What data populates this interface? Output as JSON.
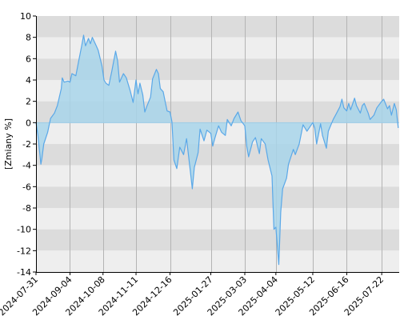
{
  "chart_data": {
    "type": "area",
    "title": "",
    "xlabel": "",
    "ylabel": "[Zmiany %]",
    "ylim": [
      -14,
      10
    ],
    "yticks": [
      10,
      8,
      6,
      4,
      2,
      0,
      -2,
      -4,
      -6,
      -8,
      -10,
      -12,
      -14
    ],
    "xlim": [
      "2024-07-31",
      "2024-08-09"
    ],
    "xticks": [
      "2024-07-31",
      "2024-09-04",
      "2024-10-08",
      "2024-11-11",
      "2024-12-16",
      "2025-01-27",
      "2025-03-03",
      "2025-04-04",
      "2025-05-12",
      "2025-06-16",
      "2025-07-22"
    ],
    "grid": "horizontal bands and vertical lines",
    "legend": "none",
    "colors": {
      "line": "#5aa8e8",
      "fill": "#a8d5ea",
      "band_dark": "#dcdcdc",
      "band_light": "#eeeeee",
      "grid_line": "#b4b4b4",
      "zero_line": "#9ccbe6"
    },
    "series": [
      {
        "points": [
          [
            "2024-07-31",
            0.0
          ],
          [
            "2024-08-02",
            -1.2
          ],
          [
            "2024-08-05",
            -3.9
          ],
          [
            "2024-08-06",
            -3.4
          ],
          [
            "2024-08-08",
            -2.0
          ],
          [
            "2024-08-12",
            -0.9
          ],
          [
            "2024-08-15",
            0.4
          ],
          [
            "2024-08-19",
            0.9
          ],
          [
            "2024-08-22",
            1.6
          ],
          [
            "2024-08-26",
            3.2
          ],
          [
            "2024-08-27",
            4.2
          ],
          [
            "2024-08-29",
            3.8
          ],
          [
            "2024-09-02",
            3.9
          ],
          [
            "2024-09-04",
            3.8
          ],
          [
            "2024-09-06",
            4.6
          ],
          [
            "2024-09-10",
            4.4
          ],
          [
            "2024-09-13",
            5.8
          ],
          [
            "2024-09-16",
            7.2
          ],
          [
            "2024-09-18",
            8.2
          ],
          [
            "2024-09-20",
            7.2
          ],
          [
            "2024-09-23",
            7.9
          ],
          [
            "2024-09-25",
            7.4
          ],
          [
            "2024-09-27",
            8.0
          ],
          [
            "2024-10-01",
            7.2
          ],
          [
            "2024-10-03",
            6.8
          ],
          [
            "2024-10-07",
            5.3
          ],
          [
            "2024-10-09",
            4.0
          ],
          [
            "2024-10-11",
            3.7
          ],
          [
            "2024-10-14",
            3.5
          ],
          [
            "2024-10-17",
            4.8
          ],
          [
            "2024-10-21",
            6.7
          ],
          [
            "2024-10-23",
            5.8
          ],
          [
            "2024-10-25",
            3.8
          ],
          [
            "2024-10-29",
            4.6
          ],
          [
            "2024-11-01",
            4.2
          ],
          [
            "2024-11-05",
            3.0
          ],
          [
            "2024-11-08",
            1.9
          ],
          [
            "2024-11-11",
            4.0
          ],
          [
            "2024-11-13",
            2.7
          ],
          [
            "2024-11-15",
            3.7
          ],
          [
            "2024-11-18",
            2.6
          ],
          [
            "2024-11-20",
            1.0
          ],
          [
            "2024-11-22",
            1.5
          ],
          [
            "2024-11-26",
            2.4
          ],
          [
            "2024-11-28",
            4.1
          ],
          [
            "2024-12-02",
            5.0
          ],
          [
            "2024-12-04",
            4.6
          ],
          [
            "2024-12-06",
            3.2
          ],
          [
            "2024-12-09",
            2.9
          ],
          [
            "2024-12-11",
            2.0
          ],
          [
            "2024-12-13",
            1.1
          ],
          [
            "2024-12-16",
            1.0
          ],
          [
            "2024-12-18",
            0.1
          ],
          [
            "2024-12-20",
            -3.5
          ],
          [
            "2024-12-23",
            -4.3
          ],
          [
            "2024-12-26",
            -2.3
          ],
          [
            "2024-12-30",
            -3.0
          ],
          [
            "2025-01-02",
            -1.5
          ],
          [
            "2025-01-06",
            -4.6
          ],
          [
            "2025-01-08",
            -6.2
          ],
          [
            "2025-01-10",
            -4.2
          ],
          [
            "2025-01-14",
            -2.8
          ],
          [
            "2025-01-16",
            -0.6
          ],
          [
            "2025-01-20",
            -1.7
          ],
          [
            "2025-01-23",
            -0.7
          ],
          [
            "2025-01-27",
            -1.0
          ],
          [
            "2025-01-29",
            -2.2
          ],
          [
            "2025-01-31",
            -1.5
          ],
          [
            "2025-02-04",
            -0.3
          ],
          [
            "2025-02-07",
            -0.9
          ],
          [
            "2025-02-11",
            -1.2
          ],
          [
            "2025-02-13",
            0.3
          ],
          [
            "2025-02-17",
            -0.3
          ],
          [
            "2025-02-20",
            0.4
          ],
          [
            "2025-02-24",
            1.0
          ],
          [
            "2025-02-27",
            0.2
          ],
          [
            "2025-03-03",
            -0.3
          ],
          [
            "2025-03-05",
            -2.2
          ],
          [
            "2025-03-07",
            -3.2
          ],
          [
            "2025-03-11",
            -1.8
          ],
          [
            "2025-03-14",
            -1.4
          ],
          [
            "2025-03-18",
            -2.9
          ],
          [
            "2025-03-20",
            -1.5
          ],
          [
            "2025-03-24",
            -2.0
          ],
          [
            "2025-03-27",
            -3.5
          ],
          [
            "2025-03-31",
            -5.0
          ],
          [
            "2025-04-02",
            -10.0
          ],
          [
            "2025-04-04",
            -9.8
          ],
          [
            "2025-04-07",
            -13.3
          ],
          [
            "2025-04-09",
            -8.4
          ],
          [
            "2025-04-11",
            -6.2
          ],
          [
            "2025-04-15",
            -5.2
          ],
          [
            "2025-04-17",
            -3.9
          ],
          [
            "2025-04-22",
            -2.5
          ],
          [
            "2025-04-24",
            -3.0
          ],
          [
            "2025-04-28",
            -2.0
          ],
          [
            "2025-05-02",
            -0.2
          ],
          [
            "2025-05-06",
            -0.8
          ],
          [
            "2025-05-09",
            -0.4
          ],
          [
            "2025-05-12",
            0.0
          ],
          [
            "2025-05-14",
            -0.5
          ],
          [
            "2025-05-16",
            -2.0
          ],
          [
            "2025-05-20",
            -0.1
          ],
          [
            "2025-05-22",
            -1.2
          ],
          [
            "2025-05-26",
            -2.4
          ],
          [
            "2025-05-28",
            -0.8
          ],
          [
            "2025-06-02",
            0.3
          ],
          [
            "2025-06-05",
            0.8
          ],
          [
            "2025-06-09",
            1.5
          ],
          [
            "2025-06-11",
            2.2
          ],
          [
            "2025-06-13",
            1.4
          ],
          [
            "2025-06-16",
            1.1
          ],
          [
            "2025-06-18",
            1.8
          ],
          [
            "2025-06-20",
            1.2
          ],
          [
            "2025-06-24",
            2.3
          ],
          [
            "2025-06-26",
            1.6
          ],
          [
            "2025-06-30",
            0.9
          ],
          [
            "2025-07-02",
            1.6
          ],
          [
            "2025-07-04",
            1.8
          ],
          [
            "2025-07-08",
            0.9
          ],
          [
            "2025-07-10",
            0.3
          ],
          [
            "2025-07-14",
            0.7
          ],
          [
            "2025-07-17",
            1.4
          ],
          [
            "2025-07-22",
            2.0
          ],
          [
            "2025-07-24",
            2.2
          ],
          [
            "2025-07-28",
            1.3
          ],
          [
            "2025-07-30",
            1.6
          ],
          [
            "2025-08-01",
            0.7
          ],
          [
            "2025-08-04",
            1.8
          ],
          [
            "2025-08-06",
            1.2
          ],
          [
            "2025-08-08",
            -0.5
          ]
        ]
      }
    ]
  }
}
